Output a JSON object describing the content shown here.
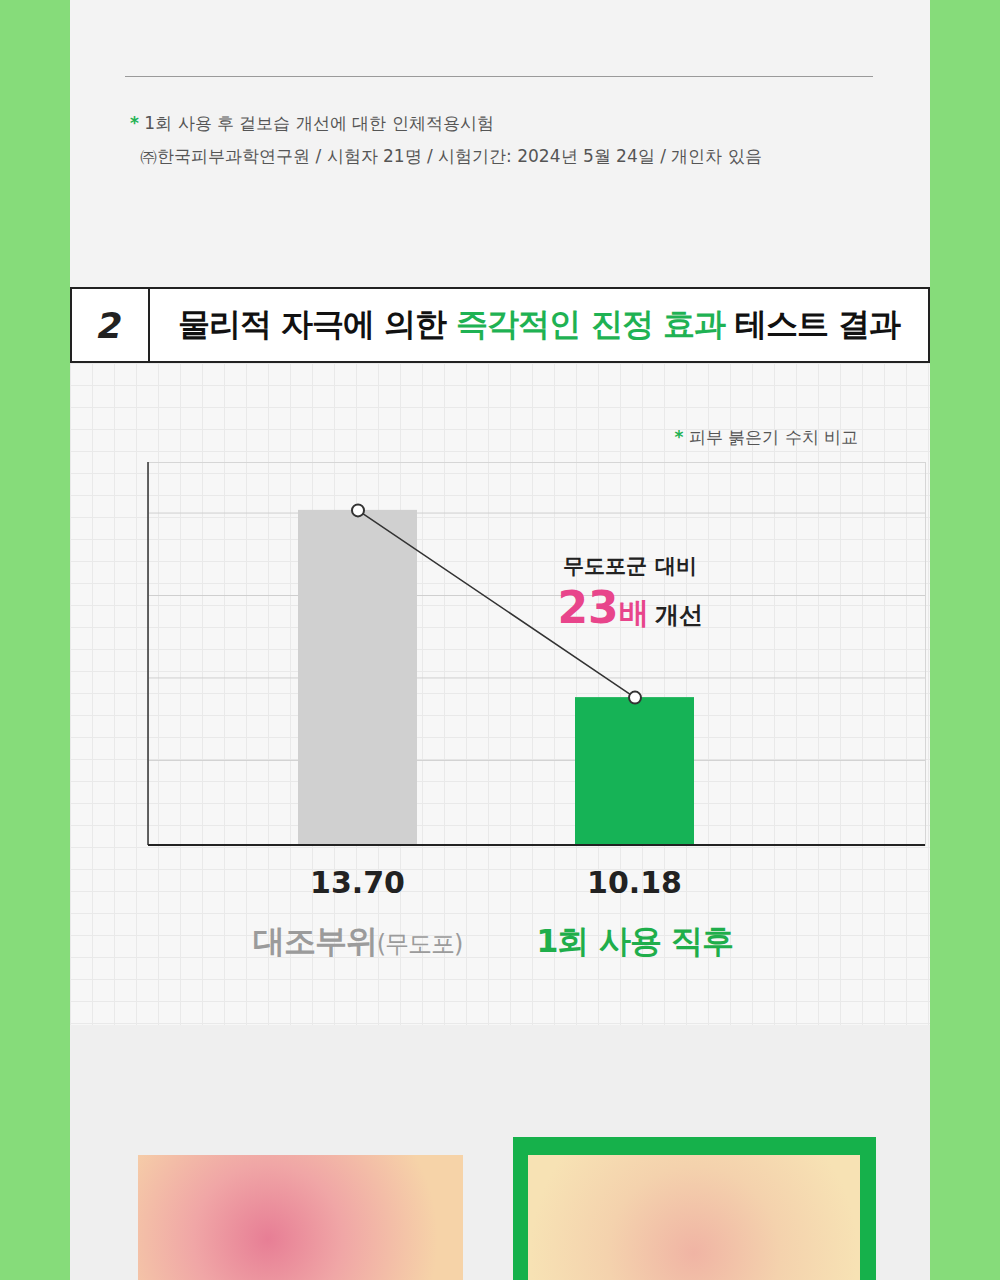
{
  "footnotes": [
    "* 1회 사용 후 겉보습 개선에 대한 인체적용시험",
    "㈜한국피부과학연구원 / 시험자 21명 / 시험기간: 2024년 5월 24일 / 개인차 있음"
  ],
  "section": {
    "number": "2",
    "title_parts": [
      {
        "text": "물리적 자극에 의한 "
      },
      {
        "text": "즉각적인 진정 효과",
        "highlight": true
      },
      {
        "text": " 테스트 결과"
      }
    ]
  },
  "chart_data": {
    "type": "bar",
    "subtitle": "* 피부 붉은기 수치 비교",
    "categories": [
      "대조부위(무도포)",
      "1회 사용 직후"
    ],
    "values": [
      13.7,
      10.18
    ],
    "value_labels": [
      "13.70",
      "10.18"
    ],
    "data_labels": true,
    "colors": [
      "#d0d0d0",
      "#16b356"
    ],
    "marker": "circle",
    "ylim": [
      7.4,
      14.6
    ],
    "yticks": [
      9,
      10.55,
      12.1,
      13.65
    ],
    "grid": true,
    "tick_labels": false,
    "annotation": {
      "lead": "무도포군 대비",
      "emphasis": "23배",
      "text": "개선"
    }
  }
}
